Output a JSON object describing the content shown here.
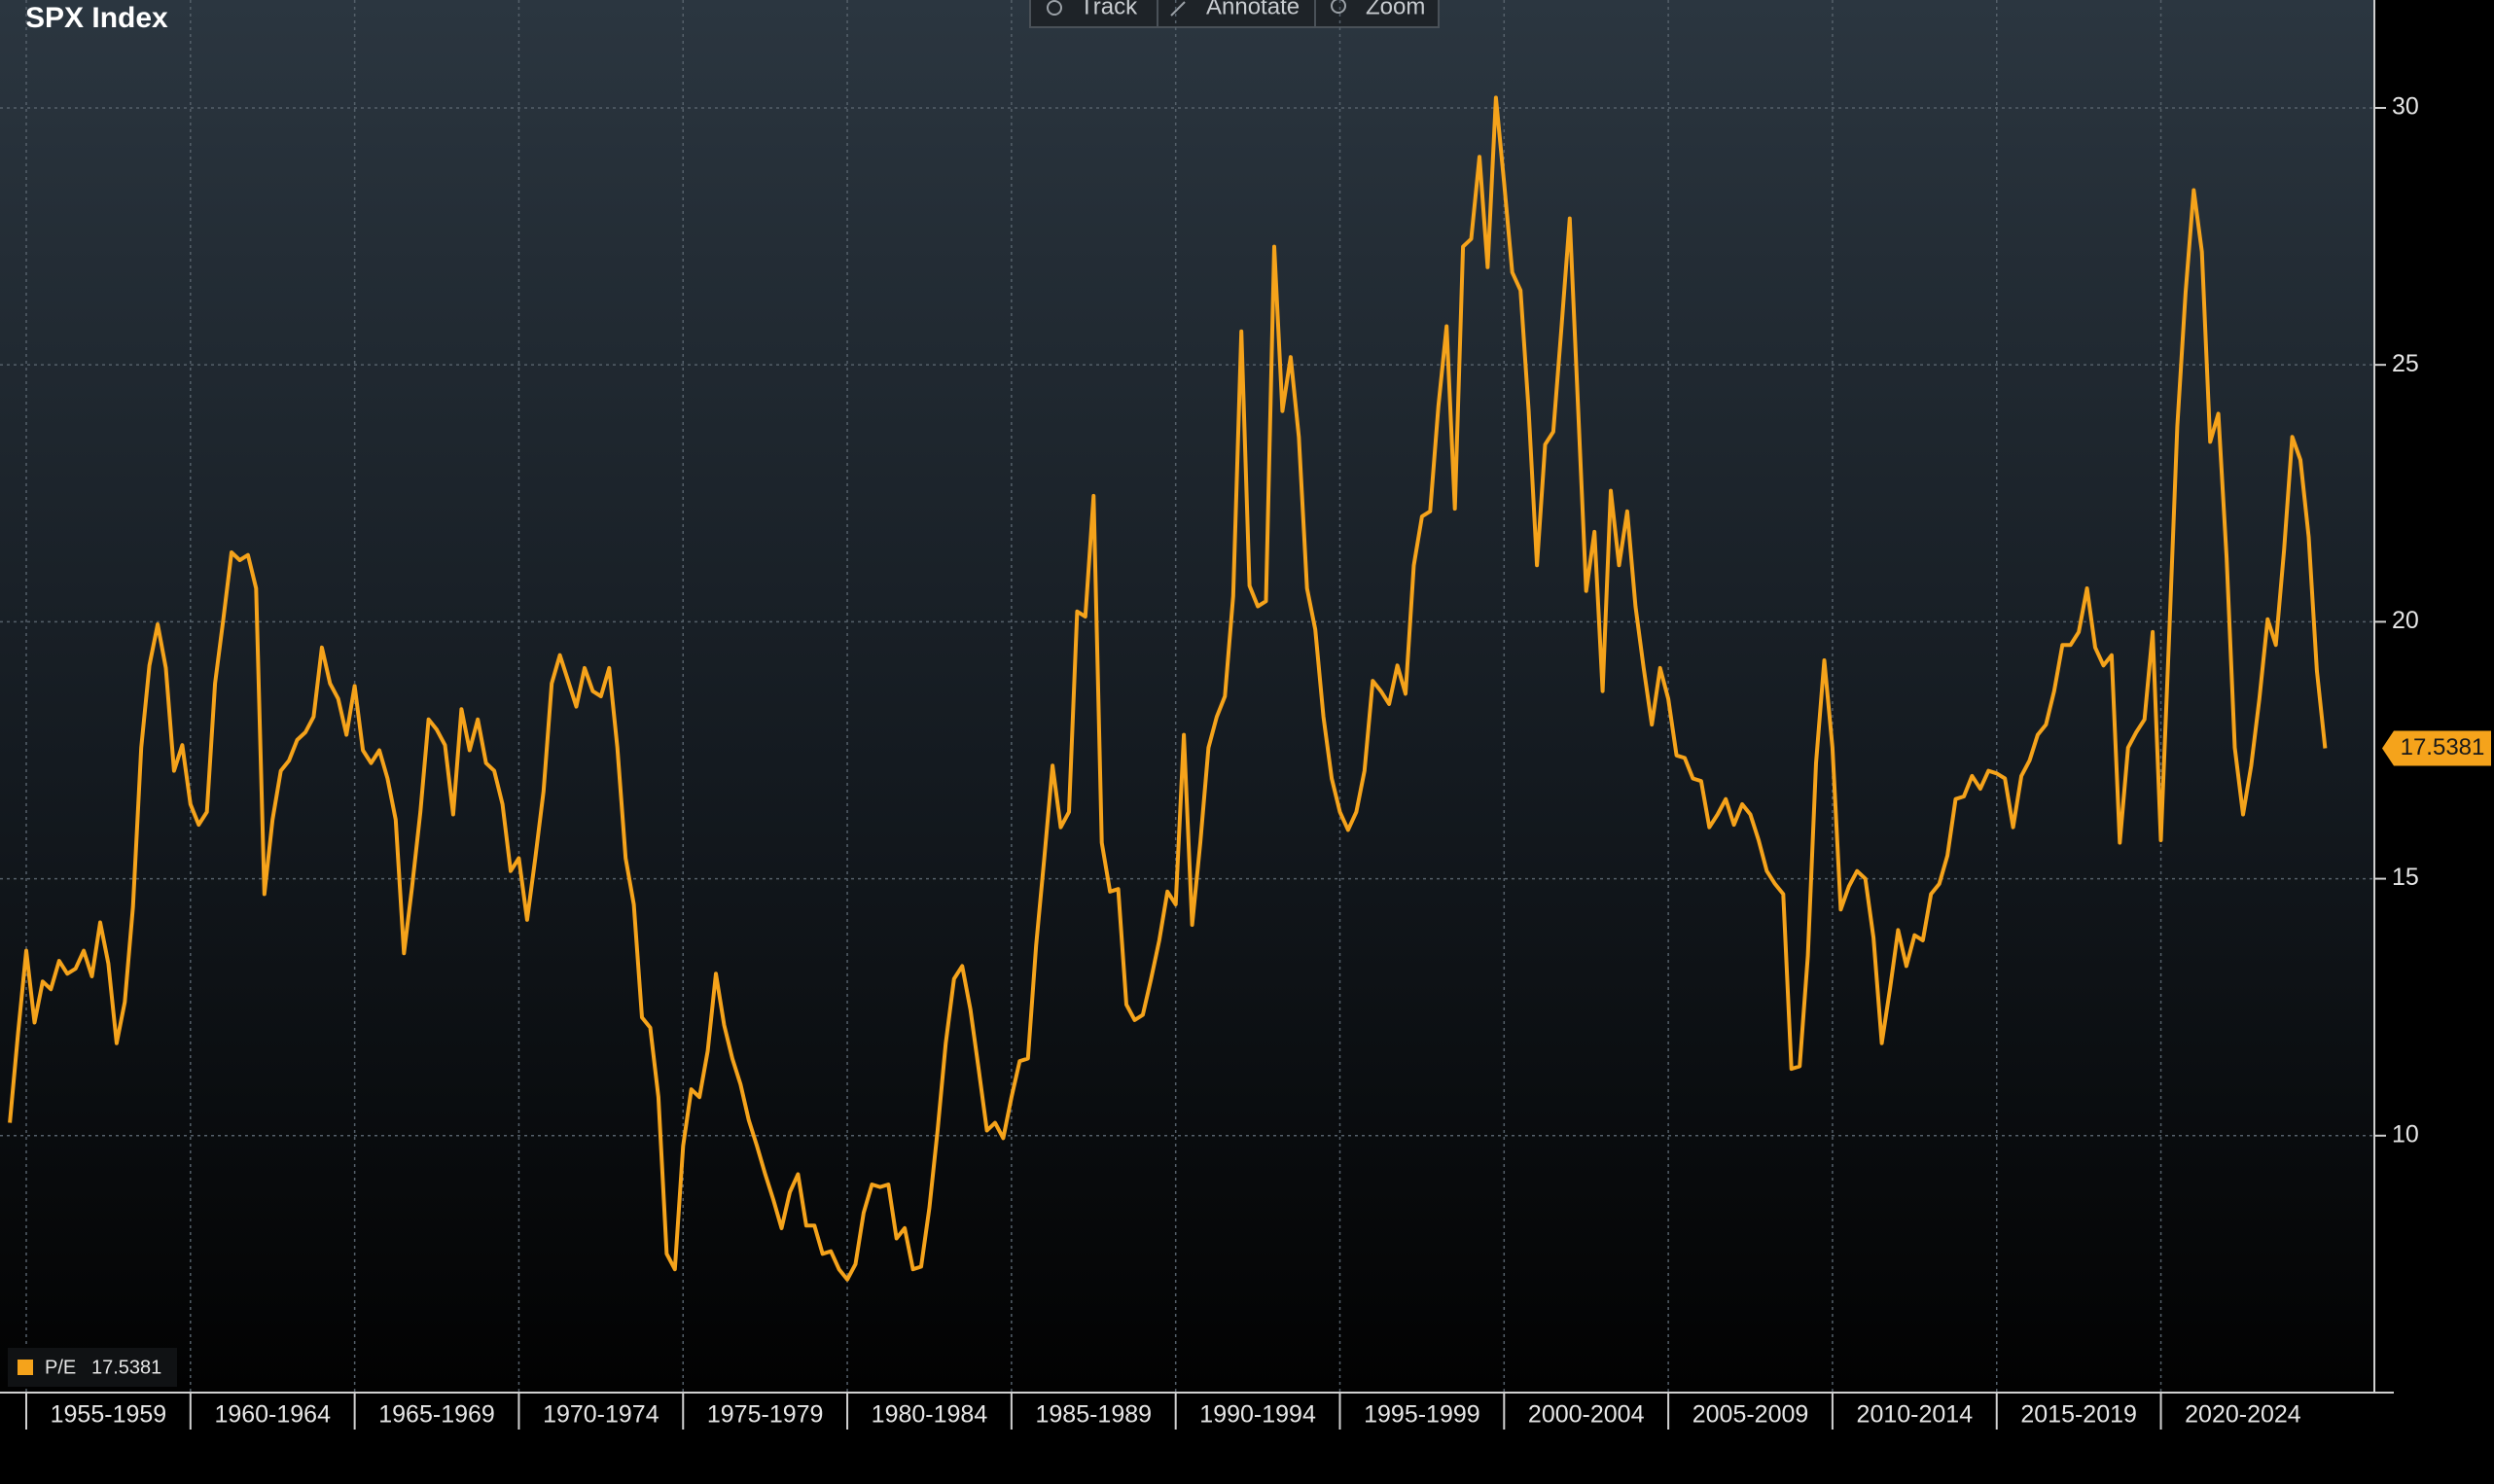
{
  "toolbar": [
    "Track",
    "Annotate",
    "Zoom"
  ],
  "chart_data": {
    "type": "line",
    "title": "SPX Index",
    "series": [
      {
        "name": "P/E",
        "color": "#f5a31b",
        "x": [
          1954.5,
          1954.75,
          1955,
          1955.25,
          1955.5,
          1955.75,
          1956,
          1956.25,
          1956.5,
          1956.75,
          1957,
          1957.25,
          1957.5,
          1957.75,
          1958,
          1958.25,
          1958.5,
          1958.75,
          1959,
          1959.25,
          1959.5,
          1959.75,
          1960,
          1960.25,
          1960.5,
          1960.75,
          1961,
          1961.25,
          1961.5,
          1961.75,
          1962,
          1962.25,
          1962.5,
          1962.75,
          1963,
          1963.25,
          1963.5,
          1963.75,
          1964,
          1964.25,
          1964.5,
          1964.75,
          1965,
          1965.25,
          1965.5,
          1965.75,
          1966,
          1966.25,
          1966.5,
          1966.75,
          1967,
          1967.25,
          1967.5,
          1967.75,
          1968,
          1968.25,
          1968.5,
          1968.75,
          1969,
          1969.25,
          1969.5,
          1969.75,
          1970,
          1970.25,
          1970.5,
          1970.75,
          1971,
          1971.25,
          1971.5,
          1971.75,
          1972,
          1972.25,
          1972.5,
          1972.75,
          1973,
          1973.25,
          1973.5,
          1973.75,
          1974,
          1974.25,
          1974.5,
          1974.75,
          1975,
          1975.25,
          1975.5,
          1975.75,
          1976,
          1976.25,
          1976.5,
          1976.75,
          1977,
          1977.25,
          1977.5,
          1977.75,
          1978,
          1978.25,
          1978.5,
          1978.75,
          1979,
          1979.25,
          1979.5,
          1979.75,
          1980,
          1980.25,
          1980.5,
          1980.75,
          1981,
          1981.25,
          1981.5,
          1981.75,
          1982,
          1982.25,
          1982.5,
          1982.75,
          1983,
          1983.25,
          1983.5,
          1983.75,
          1984,
          1984.25,
          1984.5,
          1984.75,
          1985,
          1985.25,
          1985.5,
          1985.75,
          1986,
          1986.25,
          1986.5,
          1986.75,
          1987,
          1987.25,
          1987.5,
          1987.75,
          1988,
          1988.25,
          1988.5,
          1988.75,
          1989,
          1989.25,
          1989.5,
          1989.75,
          1990,
          1990.25,
          1990.5,
          1990.75,
          1991,
          1991.25,
          1991.5,
          1991.75,
          1992,
          1992.25,
          1992.5,
          1992.75,
          1993,
          1993.25,
          1993.5,
          1993.75,
          1994,
          1994.25,
          1994.5,
          1994.75,
          1995,
          1995.25,
          1995.5,
          1995.75,
          1996,
          1996.25,
          1996.5,
          1996.75,
          1997,
          1997.25,
          1997.5,
          1997.75,
          1998,
          1998.25,
          1998.5,
          1998.75,
          1999,
          1999.25,
          1999.5,
          1999.75,
          2000,
          2000.25,
          2000.5,
          2000.75,
          2001,
          2001.25,
          2001.5,
          2001.75,
          2002,
          2002.25,
          2002.5,
          2002.75,
          2003,
          2003.25,
          2003.5,
          2003.75,
          2004,
          2004.25,
          2004.5,
          2004.75,
          2005,
          2005.25,
          2005.5,
          2005.75,
          2006,
          2006.25,
          2006.5,
          2006.75,
          2007,
          2007.25,
          2007.5,
          2007.75,
          2008,
          2008.25,
          2008.5,
          2008.75,
          2009,
          2009.25,
          2009.5,
          2009.75,
          2010,
          2010.25,
          2010.5,
          2010.75,
          2011,
          2011.25,
          2011.5,
          2011.75,
          2012,
          2012.25,
          2012.5,
          2012.75,
          2013,
          2013.25,
          2013.5,
          2013.75,
          2014,
          2014.25,
          2014.5,
          2014.75,
          2015,
          2015.25,
          2015.5,
          2015.75,
          2016,
          2016.25,
          2016.5,
          2016.75,
          2017,
          2017.25,
          2017.5,
          2017.75,
          2018,
          2018.25,
          2018.5,
          2018.75,
          2019,
          2019.25,
          2019.5,
          2019.75,
          2020,
          2020.25,
          2020.5,
          2020.75,
          2021,
          2021.25,
          2021.5,
          2021.75,
          2022,
          2022.25,
          2022.5,
          2022.75,
          2023,
          2023.25,
          2023.5,
          2023.75,
          2024,
          2024.25,
          2024.5,
          2024.75,
          2025
        ],
        "values": [
          10.25,
          12.0,
          13.6,
          12.2,
          13.0,
          12.85,
          13.4,
          13.15,
          13.25,
          13.6,
          13.1,
          14.15,
          13.35,
          11.8,
          12.6,
          14.45,
          17.55,
          19.15,
          19.95,
          19.1,
          17.1,
          17.6,
          16.45,
          16.05,
          16.3,
          18.8,
          20.05,
          21.35,
          21.2,
          21.3,
          20.65,
          14.7,
          16.15,
          17.1,
          17.3,
          17.7,
          17.85,
          18.15,
          19.5,
          18.8,
          18.5,
          17.8,
          18.75,
          17.5,
          17.25,
          17.5,
          16.95,
          16.15,
          13.55,
          14.85,
          16.3,
          18.1,
          17.9,
          17.6,
          16.25,
          18.3,
          17.5,
          18.1,
          17.25,
          17.1,
          16.45,
          15.15,
          15.4,
          14.2,
          15.4,
          16.7,
          18.8,
          19.35,
          18.85,
          18.35,
          19.1,
          18.65,
          18.55,
          19.1,
          17.55,
          15.4,
          14.5,
          12.3,
          12.1,
          10.75,
          7.7,
          7.4,
          9.8,
          10.9,
          10.75,
          11.65,
          13.15,
          12.15,
          11.5,
          11.0,
          10.3,
          9.8,
          9.25,
          8.75,
          8.2,
          8.9,
          9.25,
          8.25,
          8.25,
          7.7,
          7.75,
          7.4,
          7.2,
          7.5,
          8.5,
          9.05,
          9.0,
          9.05,
          8.0,
          8.2,
          7.4,
          7.45,
          8.6,
          10.1,
          11.8,
          13.05,
          13.3,
          12.45,
          11.3,
          10.1,
          10.25,
          9.95,
          10.75,
          11.45,
          11.5,
          13.7,
          15.4,
          17.2,
          16.0,
          16.3,
          20.2,
          20.1,
          22.45,
          15.7,
          14.75,
          14.8,
          12.55,
          12.25,
          12.35,
          13.05,
          13.8,
          14.75,
          14.5,
          17.8,
          14.1,
          15.7,
          17.55,
          18.15,
          18.55,
          20.5,
          25.65,
          20.7,
          20.3,
          20.4,
          27.3,
          24.1,
          25.15,
          23.6,
          20.65,
          19.85,
          18.15,
          16.95,
          16.3,
          15.95,
          16.3,
          17.1,
          18.85,
          18.65,
          18.4,
          19.15,
          18.6,
          21.1,
          22.05,
          22.15,
          24.2,
          25.75,
          22.2,
          27.3,
          27.45,
          29.05,
          26.9,
          30.2,
          28.55,
          26.8,
          26.45,
          24.1,
          21.1,
          23.45,
          23.7,
          25.75,
          27.85,
          24.2,
          20.6,
          21.75,
          18.65,
          22.55,
          21.1,
          22.15,
          20.3,
          19.1,
          18.0,
          19.1,
          18.5,
          17.4,
          17.35,
          16.95,
          16.9,
          16.0,
          16.25,
          16.55,
          16.05,
          16.45,
          16.25,
          15.75,
          15.15,
          14.9,
          14.7,
          11.3,
          11.35,
          13.5,
          17.25,
          19.25,
          17.55,
          14.4,
          14.85,
          15.15,
          15.0,
          13.85,
          11.8,
          12.85,
          14.0,
          13.3,
          13.9,
          13.8,
          14.7,
          14.9,
          15.45,
          16.55,
          16.6,
          17.0,
          16.75,
          17.1,
          17.05,
          16.95,
          16.0,
          17.0,
          17.3,
          17.8,
          18.0,
          18.65,
          19.55,
          19.55,
          19.8,
          20.65,
          19.5,
          19.15,
          19.35,
          15.7,
          17.55,
          17.85,
          18.1,
          19.8,
          15.75,
          19.7,
          23.8,
          26.4,
          28.4,
          27.2,
          23.5,
          24.05,
          21.25,
          17.55,
          16.25,
          17.2,
          18.5,
          20.05,
          19.55,
          21.4,
          23.6,
          23.15,
          21.65,
          19.05,
          17.5381
        ]
      }
    ],
    "xlim": [
      1954.2,
      2026.5
    ],
    "ylim": [
      5,
      32.1
    ],
    "yticks": [
      10,
      15,
      20,
      25,
      30
    ],
    "xticks": [
      {
        "value": 1955,
        "label": "1955-1959"
      },
      {
        "value": 1960,
        "label": "1960-1964"
      },
      {
        "value": 1965,
        "label": "1965-1969"
      },
      {
        "value": 1970,
        "label": "1970-1974"
      },
      {
        "value": 1975,
        "label": "1975-1979"
      },
      {
        "value": 1980,
        "label": "1980-1984"
      },
      {
        "value": 1985,
        "label": "1985-1989"
      },
      {
        "value": 1990,
        "label": "1990-1994"
      },
      {
        "value": 1995,
        "label": "1995-1999"
      },
      {
        "value": 2000,
        "label": "2000-2004"
      },
      {
        "value": 2005,
        "label": "2005-2009"
      },
      {
        "value": 2010,
        "label": "2010-2014"
      },
      {
        "value": 2015,
        "label": "2015-2019"
      },
      {
        "value": 2020,
        "label": "2020-2024"
      }
    ],
    "grid": true
  }
}
